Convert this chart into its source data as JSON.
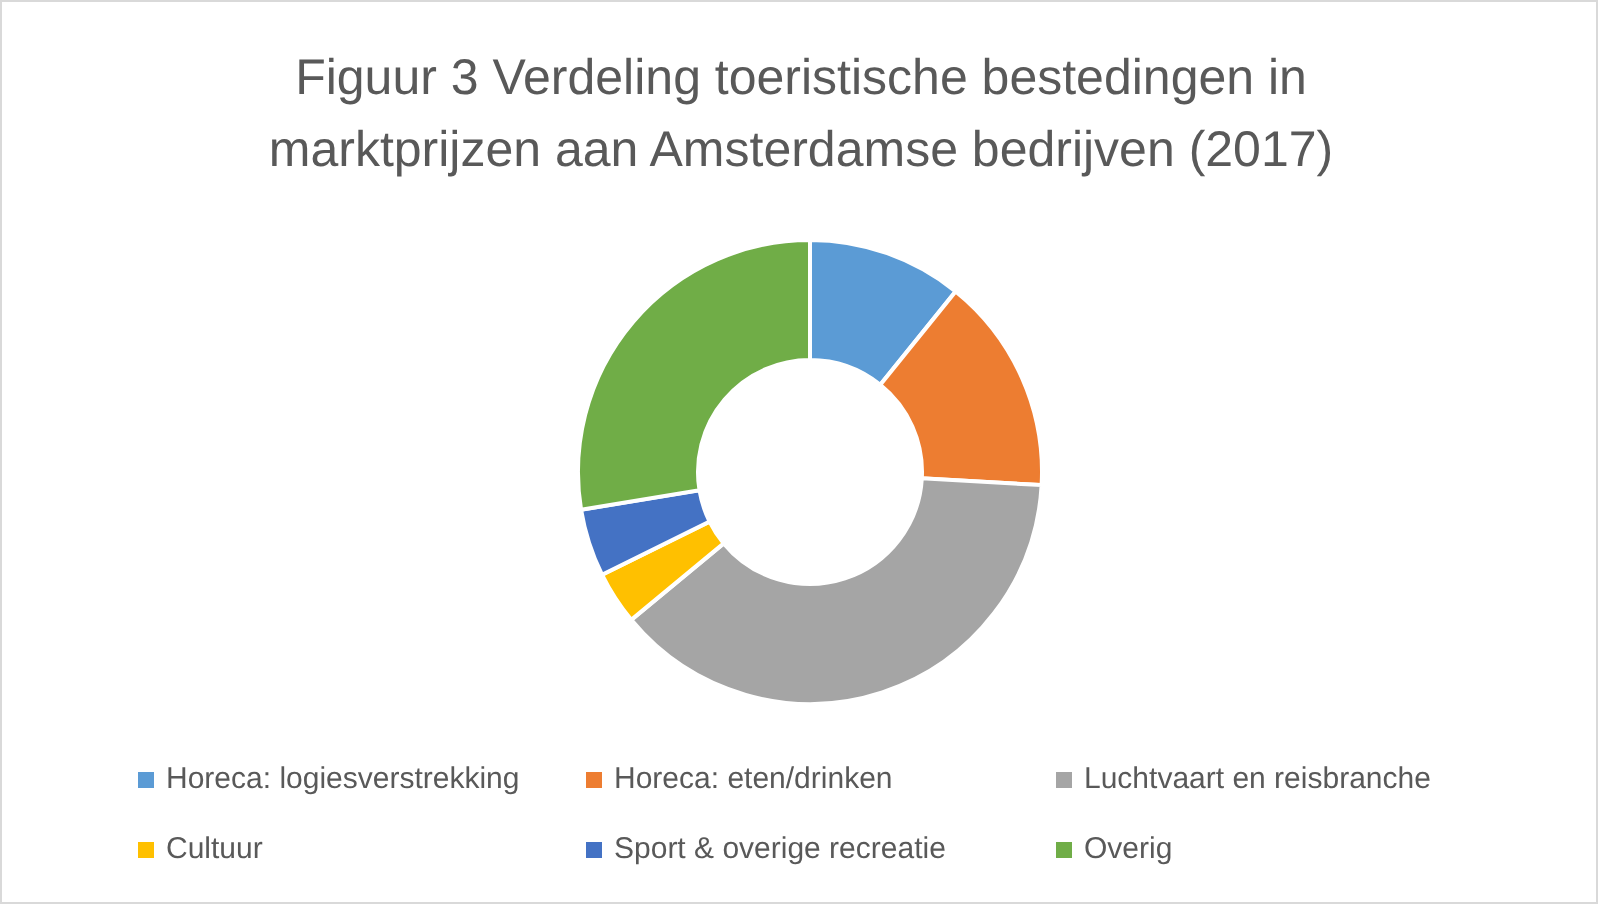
{
  "chart_data": {
    "type": "donut",
    "title": "Figuur 3 Verdeling toeristische bestedingen in marktprijzen aan Amsterdamse bedrijven (2017)",
    "categories": [
      "Horeca: logiesverstrekking",
      "Horeca: eten/drinken",
      "Luchtvaart en reisbranche",
      "Cultuur",
      "Sport & overige recreatie",
      "Overig"
    ],
    "values": [
      10.8,
      15.1,
      38.1,
      3.7,
      4.7,
      27.6
    ],
    "colors": [
      "#5b9bd5",
      "#ed7d31",
      "#a5a5a5",
      "#ffc000",
      "#4472c4",
      "#70ad47"
    ],
    "legend": "bottom"
  }
}
